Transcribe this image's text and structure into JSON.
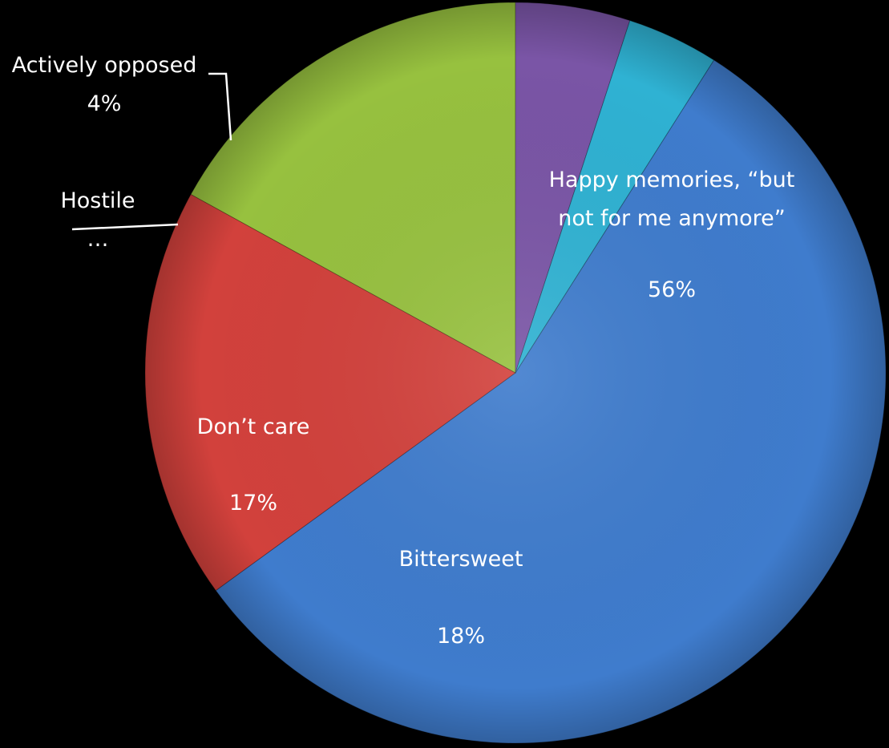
{
  "chart_data": {
    "type": "pie",
    "title": "",
    "legend": "none",
    "slices": [
      {
        "label_lines": [
          "Happy memories, “but",
          "not for me anymore”"
        ],
        "value_label": "56%",
        "value": 56,
        "color": "#3f7ccd"
      },
      {
        "label_lines": [
          "Bittersweet"
        ],
        "value_label": "18%",
        "value": 18,
        "color": "#d2413c"
      },
      {
        "label_lines": [
          "Don’t care"
        ],
        "value_label": "17%",
        "value": 17,
        "color": "#97c13f"
      },
      {
        "label_lines": [
          "Hostile",
          "…"
        ],
        "value_label": "",
        "value": 5,
        "color": "#7a55a6"
      },
      {
        "label_lines": [
          "Actively opposed"
        ],
        "value_label": "4%",
        "value": 4,
        "color": "#2fb2d3"
      }
    ]
  }
}
